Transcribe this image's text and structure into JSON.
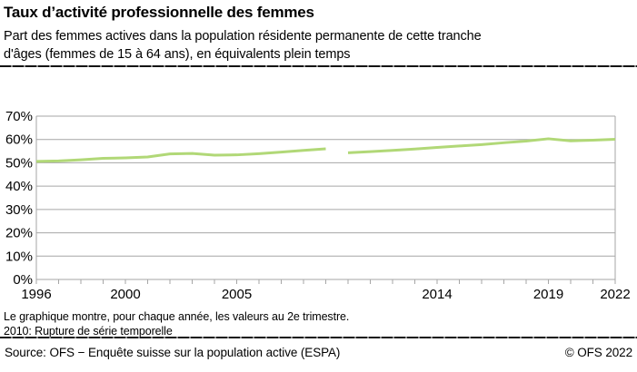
{
  "header": {
    "title": "Taux d’activité professionnelle des femmes",
    "subtitle_lines": [
      "Part des femmes actives dans la population résidente permanente de cette tranche",
      "d'âges (femmes  de 15 à 64 ans), en équivalents plein temps"
    ]
  },
  "chart_data": {
    "type": "line",
    "title": "Taux d’activité professionnelle des femmes",
    "xlabel": "",
    "ylabel": "",
    "unit": "%",
    "xlim": [
      1996,
      2022
    ],
    "ylim": [
      0,
      70
    ],
    "grid": true,
    "legend_position": "none",
    "line_color": "#b1d877",
    "grid_color": "#a6a6a6",
    "text_color": "#000000",
    "yticks": [
      {
        "value": 0,
        "label": "0%"
      },
      {
        "value": 10,
        "label": "10%"
      },
      {
        "value": 20,
        "label": "20%"
      },
      {
        "value": 30,
        "label": "30%"
      },
      {
        "value": 40,
        "label": "40%"
      },
      {
        "value": 50,
        "label": "50%"
      },
      {
        "value": 60,
        "label": "60%"
      },
      {
        "value": 70,
        "label": "70%"
      }
    ],
    "xticks": [
      {
        "value": 1996,
        "label": "1996"
      },
      {
        "value": 2000,
        "label": "2000"
      },
      {
        "value": 2005,
        "label": "2005"
      },
      {
        "value": 2014,
        "label": "2014"
      },
      {
        "value": 2019,
        "label": "2019"
      },
      {
        "value": 2022,
        "label": "2022"
      }
    ],
    "minor_tick_year_step": 1,
    "series": [
      {
        "name": "Part des femmes actives (équivalents plein temps), valeurs au 2e trimestre",
        "segments": [
          {
            "x": [
              1996,
              1997,
              1998,
              1999,
              2000,
              2001,
              2002,
              2003,
              2004,
              2005,
              2006,
              2007,
              2008,
              2009
            ],
            "y": [
              50.6,
              50.8,
              51.3,
              51.9,
              52.1,
              52.5,
              53.8,
              54.0,
              53.3,
              53.4,
              53.9,
              54.6,
              55.3,
              56.0
            ]
          },
          {
            "x": [
              2010,
              2011,
              2012,
              2013,
              2014,
              2015,
              2016,
              2017,
              2018,
              2019,
              2020,
              2021,
              2022
            ],
            "y": [
              54.3,
              54.8,
              55.3,
              55.9,
              56.6,
              57.2,
              57.8,
              58.6,
              59.3,
              60.3,
              59.4,
              59.7,
              60.1
            ]
          }
        ],
        "gap_note": "2010: rupture de série temporelle"
      }
    ]
  },
  "footnotes": {
    "lines": [
      "Le graphique montre, pour chaque année, les valeurs au 2e trimestre.",
      "2010: Rupture de série temporelle"
    ]
  },
  "source": {
    "left": "Source: OFS − Enquête suisse sur la population active (ESPA)",
    "right": "© OFS 2022"
  }
}
